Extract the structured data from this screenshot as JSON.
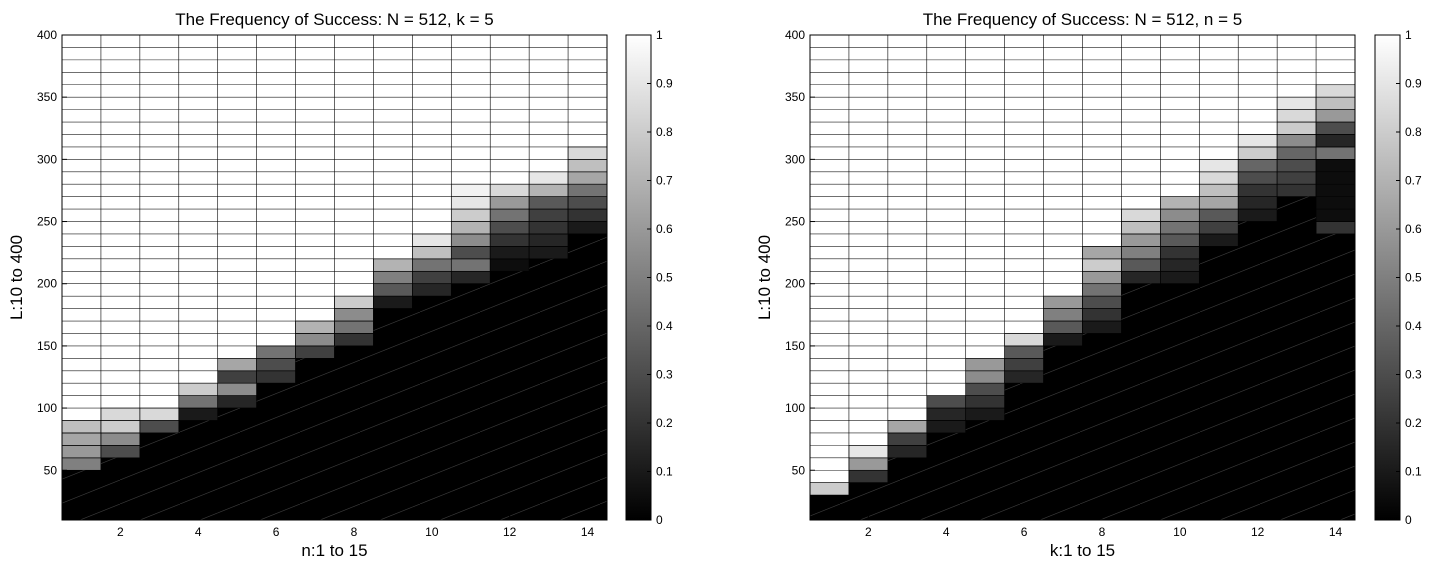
{
  "chart_data": [
    {
      "type": "heatmap",
      "title": "The Frequency of Success: N = 512, k = 5",
      "xlabel": "n:1 to 15",
      "ylabel": "L:10 to 400",
      "x_range": [
        1,
        15
      ],
      "y_range": [
        10,
        400
      ],
      "x_ticks": [
        2,
        4,
        6,
        8,
        10,
        12,
        14
      ],
      "y_ticks": [
        50,
        100,
        150,
        200,
        250,
        300,
        350,
        400
      ],
      "colorbar": {
        "min": 0,
        "max": 1,
        "ticks": [
          0,
          0.1,
          0.2,
          0.3,
          0.4,
          0.5,
          0.6,
          0.7,
          0.8,
          0.9,
          1
        ],
        "colormap": "gray"
      },
      "cell_height_L": 10,
      "columns": [
        {
          "x": 1,
          "transition": [
            [
              50,
              0.5
            ],
            [
              60,
              0.6
            ],
            [
              70,
              0.65
            ],
            [
              80,
              0.75
            ],
            [
              90,
              1
            ]
          ]
        },
        {
          "x": 2,
          "transition": [
            [
              60,
              0.3
            ],
            [
              70,
              0.55
            ],
            [
              80,
              0.8
            ],
            [
              90,
              0.85
            ],
            [
              100,
              1
            ]
          ]
        },
        {
          "x": 3,
          "transition": [
            [
              80,
              0.3
            ],
            [
              90,
              0.85
            ],
            [
              100,
              1
            ]
          ]
        },
        {
          "x": 4,
          "transition": [
            [
              90,
              0.1
            ],
            [
              100,
              0.45
            ],
            [
              110,
              0.8
            ],
            [
              120,
              1
            ]
          ]
        },
        {
          "x": 5,
          "transition": [
            [
              100,
              0.15
            ],
            [
              110,
              0.55
            ],
            [
              120,
              0.25
            ],
            [
              130,
              0.65
            ],
            [
              140,
              1
            ]
          ]
        },
        {
          "x": 6,
          "transition": [
            [
              120,
              0.2
            ],
            [
              130,
              0.3
            ],
            [
              140,
              0.45
            ],
            [
              150,
              1
            ]
          ]
        },
        {
          "x": 7,
          "transition": [
            [
              140,
              0.25
            ],
            [
              150,
              0.55
            ],
            [
              160,
              0.7
            ],
            [
              170,
              1
            ]
          ]
        },
        {
          "x": 8,
          "transition": [
            [
              150,
              0.2
            ],
            [
              160,
              0.45
            ],
            [
              170,
              0.55
            ],
            [
              180,
              0.8
            ],
            [
              190,
              1
            ]
          ]
        },
        {
          "x": 9,
          "transition": [
            [
              180,
              0.1
            ],
            [
              190,
              0.35
            ],
            [
              200,
              0.5
            ],
            [
              210,
              0.7
            ],
            [
              220,
              1
            ]
          ]
        },
        {
          "x": 10,
          "transition": [
            [
              190,
              0.15
            ],
            [
              200,
              0.25
            ],
            [
              210,
              0.45
            ],
            [
              220,
              0.75
            ],
            [
              230,
              0.9
            ],
            [
              240,
              1
            ]
          ]
        },
        {
          "x": 11,
          "transition": [
            [
              200,
              0.15
            ],
            [
              210,
              0.45
            ],
            [
              220,
              0.3
            ],
            [
              230,
              0.55
            ],
            [
              240,
              0.7
            ],
            [
              250,
              0.8
            ],
            [
              260,
              0.9
            ],
            [
              270,
              0.95
            ],
            [
              280,
              1
            ]
          ]
        },
        {
          "x": 12,
          "transition": [
            [
              210,
              0.05
            ],
            [
              220,
              0.1
            ],
            [
              230,
              0.2
            ],
            [
              240,
              0.3
            ],
            [
              250,
              0.45
            ],
            [
              260,
              0.6
            ],
            [
              270,
              0.85
            ],
            [
              280,
              1
            ]
          ]
        },
        {
          "x": 13,
          "transition": [
            [
              220,
              0.1
            ],
            [
              230,
              0.15
            ],
            [
              240,
              0.2
            ],
            [
              250,
              0.25
            ],
            [
              260,
              0.35
            ],
            [
              270,
              0.7
            ],
            [
              280,
              0.9
            ],
            [
              290,
              1
            ]
          ]
        },
        {
          "x": 14,
          "transition": [
            [
              240,
              0.1
            ],
            [
              250,
              0.2
            ],
            [
              260,
              0.3
            ],
            [
              270,
              0.45
            ],
            [
              280,
              0.65
            ],
            [
              290,
              0.75
            ],
            [
              300,
              0.85
            ],
            [
              310,
              1
            ]
          ]
        }
      ]
    },
    {
      "type": "heatmap",
      "title": "The Frequency of Success: N = 512, n = 5",
      "xlabel": "k:1 to 15",
      "ylabel": "L:10 to 400",
      "x_range": [
        1,
        15
      ],
      "y_range": [
        10,
        400
      ],
      "x_ticks": [
        2,
        4,
        6,
        8,
        10,
        12,
        14
      ],
      "y_ticks": [
        50,
        100,
        150,
        200,
        250,
        300,
        350,
        400
      ],
      "colorbar": {
        "min": 0,
        "max": 1,
        "ticks": [
          0,
          0.1,
          0.2,
          0.3,
          0.4,
          0.5,
          0.6,
          0.7,
          0.8,
          0.9,
          1
        ],
        "colormap": "gray"
      },
      "cell_height_L": 10,
      "columns": [
        {
          "x": 1,
          "transition": [
            [
              30,
              0.8
            ],
            [
              40,
              1
            ]
          ]
        },
        {
          "x": 2,
          "transition": [
            [
              40,
              0.2
            ],
            [
              50,
              0.6
            ],
            [
              60,
              0.9
            ],
            [
              70,
              1
            ]
          ]
        },
        {
          "x": 3,
          "transition": [
            [
              60,
              0.15
            ],
            [
              70,
              0.25
            ],
            [
              80,
              0.65
            ],
            [
              90,
              1
            ]
          ]
        },
        {
          "x": 4,
          "transition": [
            [
              80,
              0.1
            ],
            [
              90,
              0.15
            ],
            [
              100,
              0.3
            ],
            [
              110,
              1
            ]
          ]
        },
        {
          "x": 5,
          "transition": [
            [
              90,
              0.1
            ],
            [
              100,
              0.2
            ],
            [
              110,
              0.3
            ],
            [
              120,
              0.55
            ],
            [
              130,
              0.6
            ],
            [
              140,
              1
            ]
          ]
        },
        {
          "x": 6,
          "transition": [
            [
              120,
              0.15
            ],
            [
              130,
              0.25
            ],
            [
              140,
              0.35
            ],
            [
              150,
              0.85
            ],
            [
              160,
              1
            ]
          ]
        },
        {
          "x": 7,
          "transition": [
            [
              150,
              0.1
            ],
            [
              160,
              0.35
            ],
            [
              170,
              0.5
            ],
            [
              180,
              0.6
            ],
            [
              190,
              1
            ]
          ]
        },
        {
          "x": 8,
          "transition": [
            [
              160,
              0.1
            ],
            [
              170,
              0.2
            ],
            [
              180,
              0.3
            ],
            [
              190,
              0.45
            ],
            [
              200,
              0.6
            ],
            [
              210,
              0.8
            ],
            [
              220,
              0.65
            ],
            [
              230,
              1
            ]
          ]
        },
        {
          "x": 9,
          "transition": [
            [
              200,
              0.15
            ],
            [
              210,
              0.35
            ],
            [
              220,
              0.5
            ],
            [
              230,
              0.6
            ],
            [
              240,
              0.75
            ],
            [
              250,
              0.85
            ],
            [
              260,
              1
            ]
          ]
        },
        {
          "x": 10,
          "transition": [
            [
              200,
              0.1
            ],
            [
              210,
              0.15
            ],
            [
              220,
              0.2
            ],
            [
              230,
              0.35
            ],
            [
              240,
              0.45
            ],
            [
              250,
              0.55
            ],
            [
              260,
              0.7
            ],
            [
              270,
              1
            ]
          ]
        },
        {
          "x": 11,
          "transition": [
            [
              230,
              0.1
            ],
            [
              240,
              0.25
            ],
            [
              250,
              0.35
            ],
            [
              260,
              0.65
            ],
            [
              270,
              0.75
            ],
            [
              280,
              0.85
            ],
            [
              290,
              0.9
            ],
            [
              300,
              1
            ]
          ]
        },
        {
          "x": 12,
          "transition": [
            [
              250,
              0.1
            ],
            [
              260,
              0.15
            ],
            [
              270,
              0.2
            ],
            [
              280,
              0.3
            ],
            [
              290,
              0.4
            ],
            [
              300,
              0.8
            ],
            [
              310,
              0.9
            ],
            [
              320,
              1
            ]
          ]
        },
        {
          "x": 13,
          "transition": [
            [
              270,
              0.2
            ],
            [
              280,
              0.25
            ],
            [
              290,
              0.3
            ],
            [
              300,
              0.4
            ],
            [
              310,
              0.55
            ],
            [
              320,
              0.8
            ],
            [
              330,
              0.85
            ],
            [
              340,
              0.9
            ],
            [
              350,
              1
            ]
          ]
        },
        {
          "x": 14,
          "transition": [
            [
              240,
              0.2
            ],
            [
              250,
              0.05
            ],
            [
              300,
              0.45
            ],
            [
              310,
              0.15
            ],
            [
              320,
              0.3
            ],
            [
              330,
              0.6
            ],
            [
              340,
              0.75
            ],
            [
              350,
              0.85
            ],
            [
              360,
              1
            ]
          ]
        }
      ]
    }
  ]
}
